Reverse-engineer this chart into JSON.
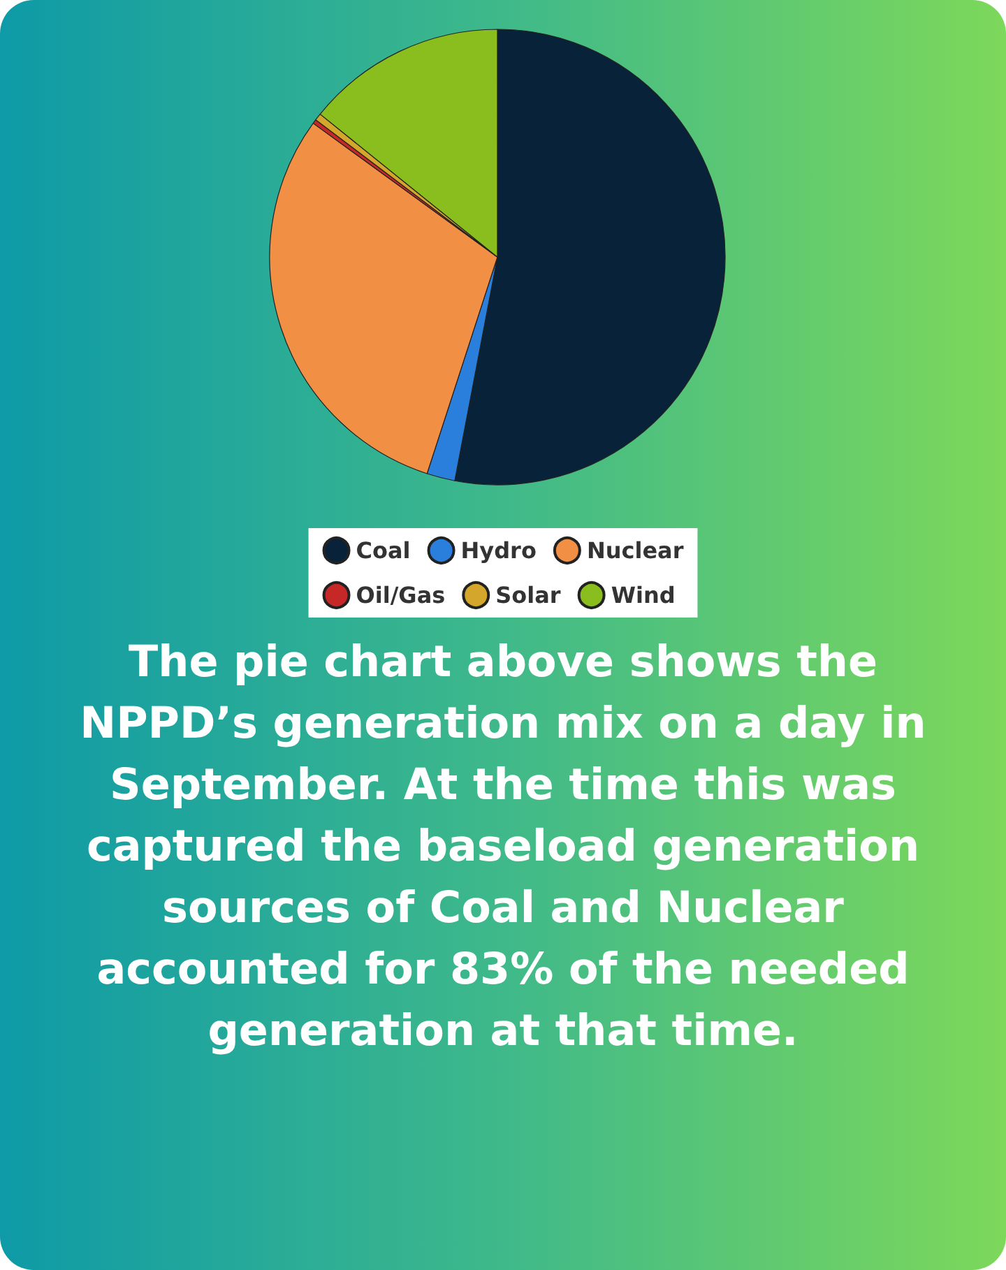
{
  "chart_data": {
    "type": "pie",
    "categories": [
      "Coal",
      "Hydro",
      "Nuclear",
      "Oil/Gas",
      "Solar",
      "Wind"
    ],
    "values": [
      53,
      2,
      30,
      0.3,
      0.5,
      14.2
    ],
    "colors": [
      "#072239",
      "#2b7fdc",
      "#f19044",
      "#c62828",
      "#d4a72c",
      "#8abd1e"
    ],
    "legend": "bottom",
    "annotations": [
      "The pie chart above shows the NPPD’s generation mix on a day in September. At the time this was captured the baseload generation sources of Coal and Nuclear accounted for 83% of the needed generation at that time."
    ]
  }
}
